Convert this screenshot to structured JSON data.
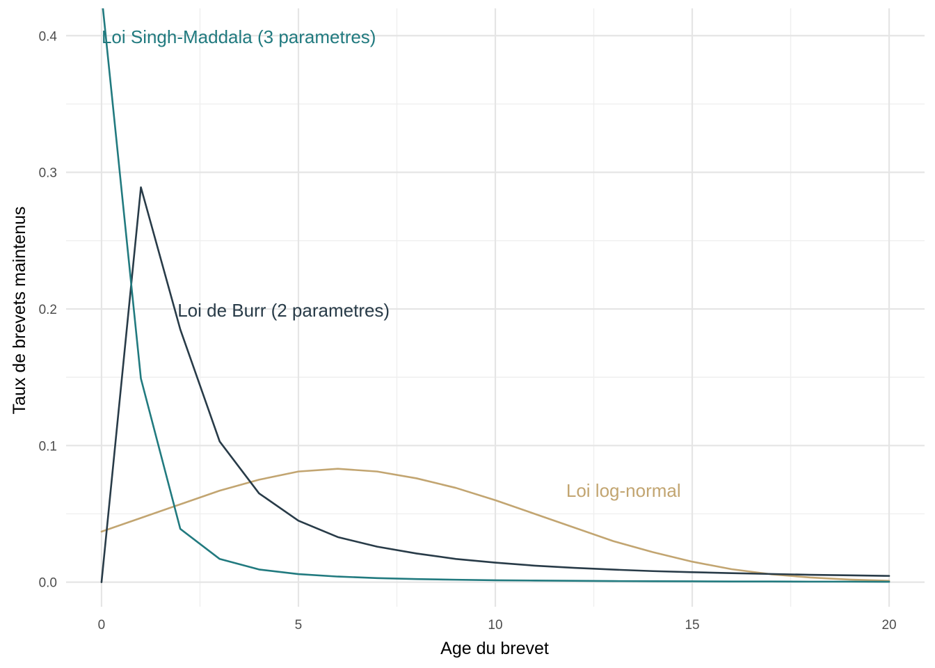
{
  "chart_data": {
    "type": "line",
    "xlabel": "Age du brevet",
    "ylabel": "Taux de brevets maintenus",
    "xlim": [
      -0.9,
      20.9
    ],
    "ylim": [
      -0.018,
      0.42
    ],
    "x_ticks": [
      0,
      5,
      10,
      15,
      20
    ],
    "y_ticks": [
      0.0,
      0.1,
      0.2,
      0.3,
      0.4
    ],
    "x_tick_labels": [
      "0",
      "5",
      "10",
      "15",
      "20"
    ],
    "y_tick_labels": [
      "0.0",
      "0.1",
      "0.2",
      "0.3",
      "0.4"
    ],
    "grid": true,
    "legend": "none",
    "x": [
      0,
      1,
      2,
      3,
      4,
      5,
      6,
      7,
      8,
      9,
      10,
      11,
      12,
      13,
      14,
      15,
      16,
      17,
      18,
      19,
      20
    ],
    "series": [
      {
        "name": "Loi Singh-Maddala (3 parametres)",
        "color": "#217a7f",
        "values": [
          0.43,
          0.149,
          0.039,
          0.017,
          0.0093,
          0.0059,
          0.0041,
          0.003,
          0.0023,
          0.0018,
          0.0014,
          0.0012,
          0.001,
          0.0008,
          0.0007,
          0.0006,
          0.0005,
          0.0005,
          0.0004,
          0.0004,
          0.0003
        ],
        "label_at": [
          0.0,
          0.399
        ]
      },
      {
        "name": "Loi de Burr (2 parametres)",
        "color": "#283b48",
        "values": [
          0.0,
          0.289,
          0.185,
          0.103,
          0.065,
          0.045,
          0.033,
          0.026,
          0.021,
          0.017,
          0.0143,
          0.0121,
          0.0105,
          0.0092,
          0.0081,
          0.0073,
          0.0066,
          0.006,
          0.0054,
          0.005,
          0.0046
        ],
        "label_at": [
          1.93,
          0.199
        ]
      },
      {
        "name": "Loi log-normal",
        "color": "#c2a571",
        "values": [
          0.037,
          0.047,
          0.057,
          0.067,
          0.075,
          0.081,
          0.083,
          0.081,
          0.076,
          0.069,
          0.06,
          0.05,
          0.04,
          0.03,
          0.022,
          0.015,
          0.0095,
          0.0058,
          0.0034,
          0.0019,
          0.001
        ],
        "label_at": [
          11.8,
          0.067
        ]
      }
    ]
  }
}
